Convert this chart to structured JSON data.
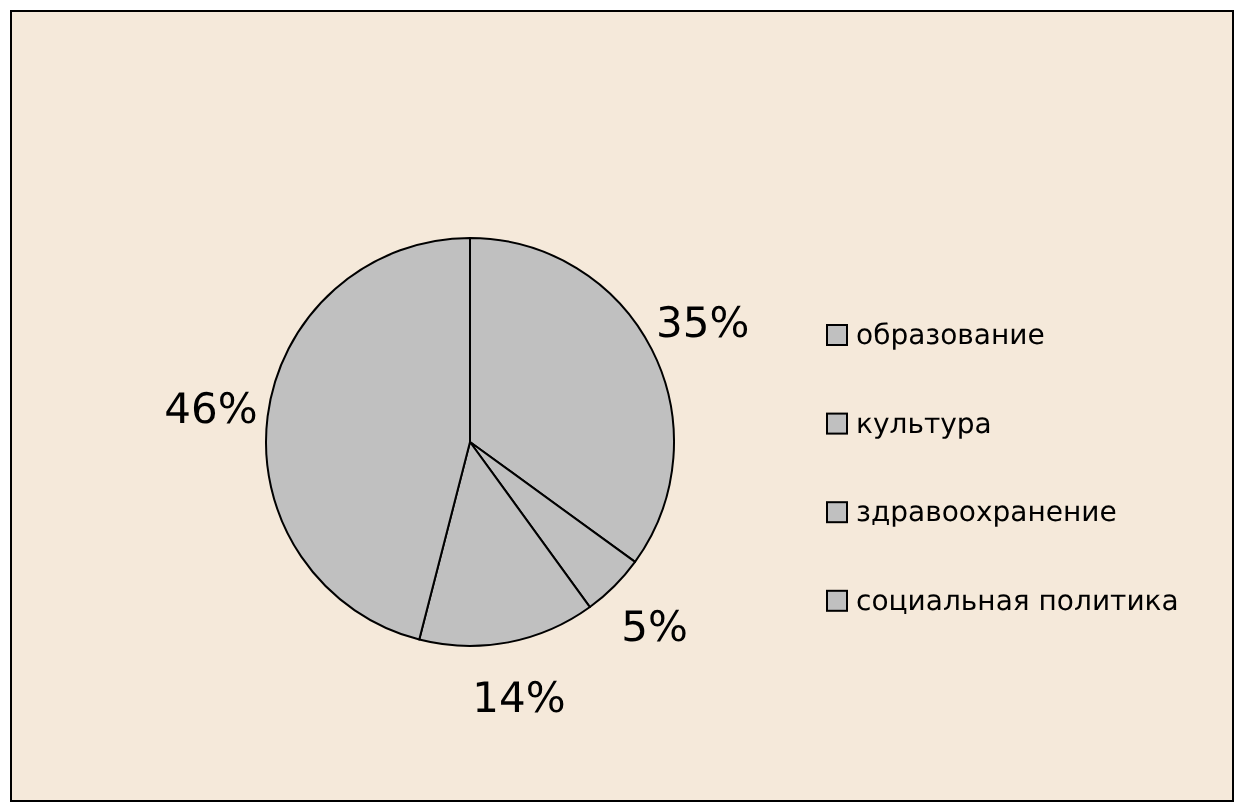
{
  "chart_data": {
    "type": "pie",
    "categories": [
      "образование",
      "культура",
      "здравоохранение",
      "социальная политика"
    ],
    "values": [
      35,
      5,
      14,
      46
    ],
    "colors": [
      "#c0c0c0",
      "#c0c0c0",
      "#c0c0c0",
      "#c0c0c0"
    ],
    "value_labels": [
      "35%",
      "5%",
      "14%",
      "46%"
    ],
    "legend": "right"
  }
}
